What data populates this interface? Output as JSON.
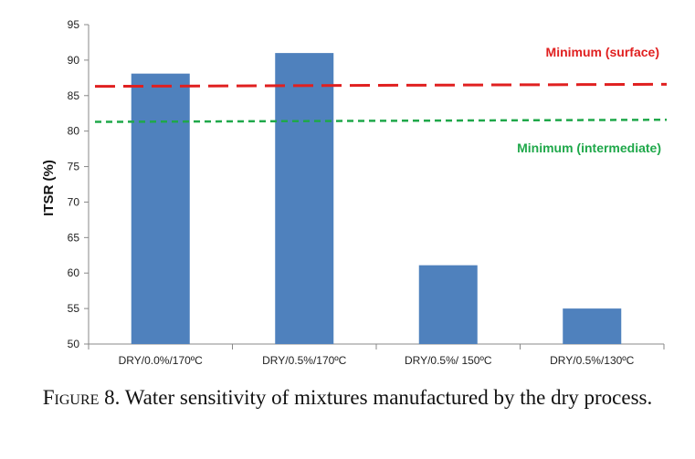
{
  "chart_data": {
    "type": "bar",
    "title": "",
    "xlabel": "",
    "ylabel": "ITSR (%)",
    "ylim": [
      50,
      95
    ],
    "yticks": [
      50,
      55,
      60,
      65,
      70,
      75,
      80,
      85,
      90,
      95
    ],
    "grid": false,
    "categories": [
      "DRY/0.0%/170ºC",
      "DRY/0.5%/170ºC",
      "DRY/0.5%/ 150ºC",
      "DRY/0.5%/130ºC"
    ],
    "values": [
      88.1,
      91.0,
      61.1,
      55.0
    ],
    "bar_color": "#4F81BD",
    "reference_lines": [
      {
        "label": "Minimum (surface)",
        "value_start": 86.3,
        "value_end": 86.6,
        "color": "#E02020",
        "style": "long-dash"
      },
      {
        "label": "Minimum (intermediate)",
        "value_start": 81.3,
        "value_end": 81.6,
        "color": "#1FA84A",
        "style": "short-dash"
      }
    ]
  },
  "caption": {
    "figure_label": "Figure 8.",
    "text": "Water sensitivity of mixtures manufactured by the dry process."
  }
}
